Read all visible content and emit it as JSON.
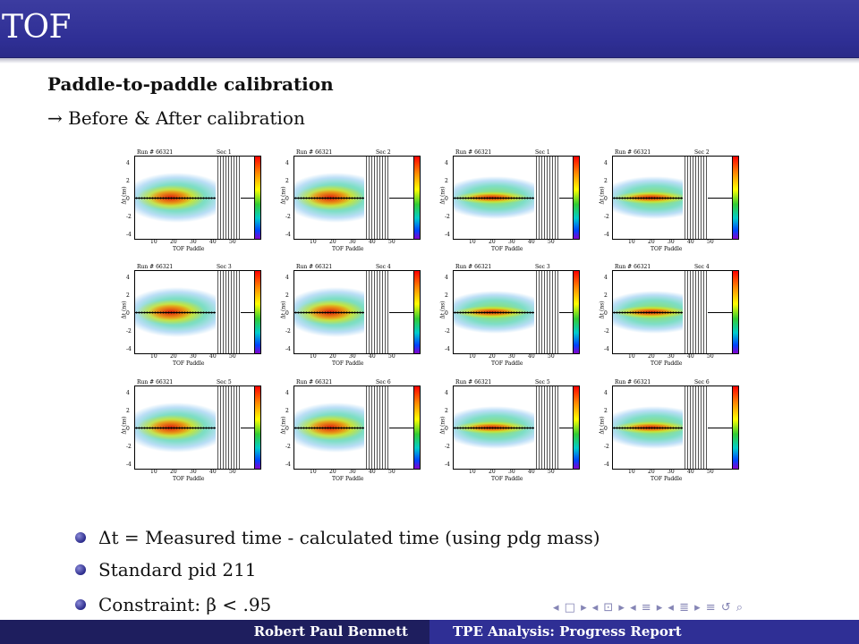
{
  "frame": {
    "title": "TOF"
  },
  "slide": {
    "subtitle": "Paddle-to-paddle calibration",
    "subline": "→ Before & After calibration"
  },
  "plot_labels": {
    "run": "Run # 66321",
    "xlabel": "TOF Paddle",
    "ylabel": "Δt (ns)",
    "xticks": [
      "10",
      "20",
      "30",
      "40",
      "50"
    ],
    "yticks": [
      "4",
      "2",
      "0",
      "-2",
      "-4"
    ]
  },
  "plots": [
    {
      "sec": "Sec 1",
      "state": "before"
    },
    {
      "sec": "Sec 2",
      "state": "before"
    },
    {
      "sec": "Sec 1",
      "state": "after"
    },
    {
      "sec": "Sec 2",
      "state": "after"
    },
    {
      "sec": "Sec 3",
      "state": "before"
    },
    {
      "sec": "Sec 4",
      "state": "before"
    },
    {
      "sec": "Sec 3",
      "state": "after"
    },
    {
      "sec": "Sec 4",
      "state": "after"
    },
    {
      "sec": "Sec 5",
      "state": "before"
    },
    {
      "sec": "Sec 6",
      "state": "before"
    },
    {
      "sec": "Sec 5",
      "state": "after"
    },
    {
      "sec": "Sec 6",
      "state": "after"
    }
  ],
  "bullets": [
    "Δt = Measured time - calculated time (using pdg mass)",
    "Standard pid 211",
    "Constraint: β < .95"
  ],
  "nav": {
    "symbols": "◂ □ ▸ ◂ ⊡ ▸ ◂ ≡ ▸ ◂ ≣ ▸   ≡   ↺ ⌕"
  },
  "footer": {
    "author": "Robert Paul Bennett",
    "talk": "TPE Analysis: Progress Report"
  },
  "colors": {
    "header": "#2f2f95",
    "footer_dark": "#1e1e5e",
    "bullet": "#2a2a8a"
  }
}
